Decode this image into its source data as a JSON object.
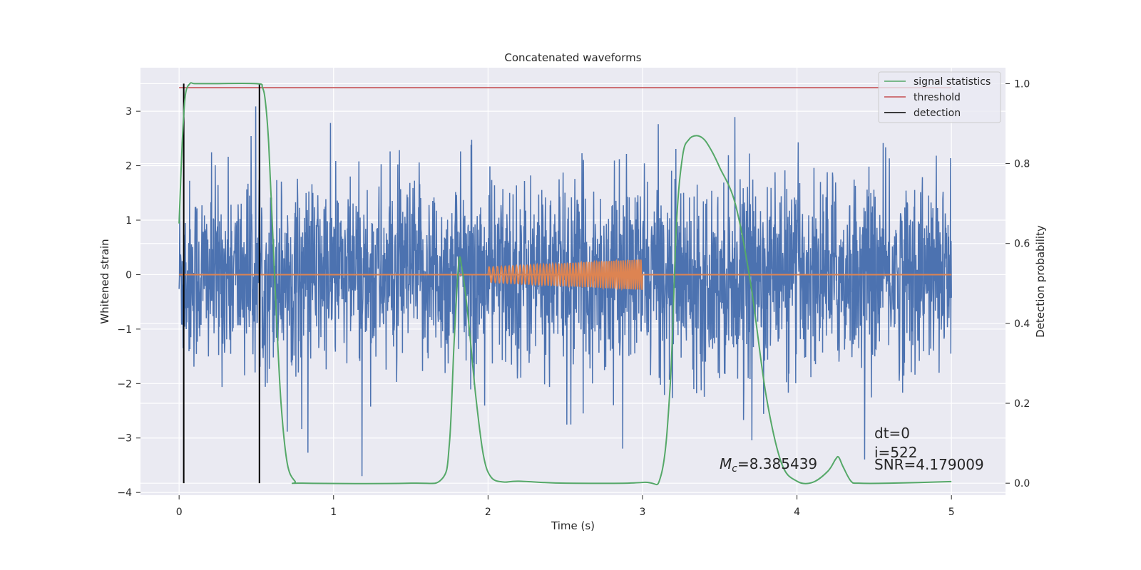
{
  "chart_data": {
    "type": "line",
    "title": "Concatenated waveforms",
    "xlabel": "Time (s)",
    "ylabel_left": "Whitened strain",
    "ylabel_right": "Detection probability",
    "xlim": [
      -0.25,
      5.35
    ],
    "ylim_left": [
      -4.05,
      3.8
    ],
    "ylim_right": [
      -0.03,
      1.04
    ],
    "x_ticks": [
      0,
      1,
      2,
      3,
      4,
      5
    ],
    "x_tick_labels": [
      "0",
      "1",
      "2",
      "3",
      "4",
      "5"
    ],
    "y_left_ticks": [
      3,
      2,
      1,
      0,
      -1,
      -2,
      -3,
      -4
    ],
    "y_left_tick_labels": [
      "3",
      "2",
      "1",
      "0",
      "−1",
      "−2",
      "−3",
      "−4"
    ],
    "y_right_ticks": [
      1.0,
      0.8,
      0.6,
      0.4,
      0.2,
      0.0
    ],
    "y_right_tick_labels": [
      "1.0",
      "0.8",
      "0.6",
      "0.4",
      "0.2",
      "0.0"
    ],
    "grid": true,
    "legend_position": "top-right",
    "legend": [
      {
        "label": "signal statistics",
        "color": "#55a868"
      },
      {
        "label": "threshold",
        "color": "#c44e52"
      },
      {
        "label": "detection",
        "color": "#000000"
      }
    ],
    "series": [
      {
        "name": "whitened noise",
        "color": "#4c72b0",
        "axis": "left",
        "x_range": [
          0,
          5
        ],
        "amplitude_std": 0.85
      },
      {
        "name": "injected chirp",
        "color": "#dd8452",
        "axis": "left",
        "x_range": [
          2,
          3
        ],
        "amplitude_start": 0.14,
        "amplitude_end": 0.28
      },
      {
        "name": "signal statistics",
        "color": "#55a868",
        "axis": "right",
        "x": [
          0,
          0.02,
          0.04,
          0.07,
          0.1,
          0.2,
          0.5,
          0.54,
          0.56,
          0.58,
          0.6,
          0.63,
          0.66,
          0.7,
          0.75,
          0.8,
          1.5,
          1.7,
          1.75,
          1.78,
          1.81,
          1.83,
          1.87,
          1.92,
          1.97,
          2.02,
          2.1,
          2.2,
          2.5,
          3.0,
          3.12,
          3.18,
          3.22,
          3.26,
          3.3,
          3.35,
          3.4,
          3.45,
          3.5,
          3.6,
          3.7,
          3.8,
          3.9,
          4.0,
          4.1,
          4.2,
          4.25,
          4.27,
          4.3,
          4.35,
          4.4,
          4.6,
          5.0
        ],
        "y": [
          0.65,
          0.85,
          0.97,
          1.0,
          1.0,
          1.0,
          1.0,
          0.99,
          0.95,
          0.85,
          0.68,
          0.42,
          0.2,
          0.05,
          0.005,
          0.0,
          0.0,
          0.01,
          0.1,
          0.35,
          0.55,
          0.54,
          0.42,
          0.22,
          0.07,
          0.015,
          0.003,
          0.005,
          0.0,
          0.002,
          0.02,
          0.25,
          0.65,
          0.82,
          0.86,
          0.87,
          0.86,
          0.83,
          0.79,
          0.7,
          0.5,
          0.22,
          0.05,
          0.005,
          0.002,
          0.03,
          0.06,
          0.065,
          0.04,
          0.005,
          0.0,
          0.0,
          0.004
        ]
      },
      {
        "name": "threshold",
        "color": "#c44e52",
        "axis": "right",
        "x": [
          0,
          5
        ],
        "y": [
          0.99,
          0.99
        ]
      },
      {
        "name": "detection",
        "color": "#000000",
        "axis": "right",
        "x": [
          0.03,
          0.52
        ],
        "y_range": [
          0,
          1
        ]
      }
    ],
    "annotations": {
      "mc": "=8.385439",
      "dt": "dt=0",
      "i": "i=522",
      "snr": "SNR=4.179009"
    }
  },
  "colors": {
    "plot_bg": "#eaeaf2",
    "grid": "#ffffff",
    "noise": "#4c72b0",
    "chirp": "#dd8452",
    "stat": "#55a868",
    "threshold": "#c44e52",
    "detection": "#000000"
  }
}
